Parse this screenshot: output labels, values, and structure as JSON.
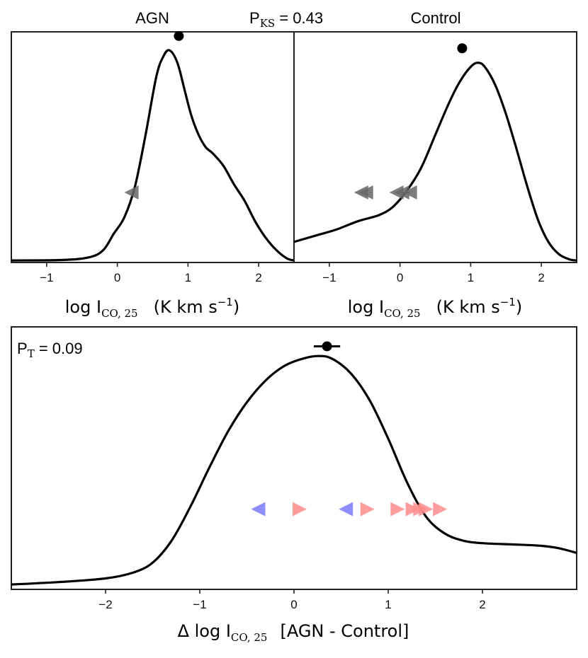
{
  "chart_data": [
    {
      "panel": "top-left",
      "type": "line",
      "title": "AGN",
      "xlabel": {
        "main": "log I",
        "sub": "CO, 25",
        "units_pre": "(K km s",
        "units_sup": "−1",
        "units_post": ")"
      },
      "xlim": [
        -1.5,
        2.5
      ],
      "ylim": [
        0,
        1.12
      ],
      "xticks": [
        -1,
        0,
        1,
        2
      ],
      "xtick_labels": [
        "−1",
        "0",
        "1",
        "2"
      ],
      "density": {
        "x": [
          -1.5,
          -0.8,
          -0.4,
          -0.2,
          -0.05,
          0.1,
          0.25,
          0.4,
          0.55,
          0.65,
          0.74,
          0.85,
          0.95,
          1.05,
          1.15,
          1.25,
          1.35,
          1.5,
          1.65,
          1.8,
          1.95,
          2.1,
          2.25,
          2.4,
          2.5
        ],
        "y": [
          0.01,
          0.012,
          0.025,
          0.06,
          0.14,
          0.22,
          0.37,
          0.62,
          0.9,
          1.0,
          1.03,
          0.97,
          0.84,
          0.71,
          0.62,
          0.56,
          0.53,
          0.47,
          0.38,
          0.3,
          0.2,
          0.12,
          0.06,
          0.02,
          0.01
        ]
      },
      "points": [
        {
          "x": 0.87,
          "y": 1.1,
          "marker": "circle",
          "color": "#000000"
        }
      ],
      "upper_limits": [
        {
          "x": 0.2,
          "y": 0.34,
          "marker": "left-triangle",
          "color": "#666666"
        }
      ]
    },
    {
      "panel": "top-right",
      "type": "line",
      "title": "Control",
      "xlabel": {
        "main": "log I",
        "sub": "CO, 25",
        "units_pre": "(K km s",
        "units_sup": "−1",
        "units_post": ")"
      },
      "xlim": [
        -1.5,
        2.5
      ],
      "ylim": [
        0,
        1.12
      ],
      "xticks": [
        -1,
        0,
        1,
        2
      ],
      "xtick_labels": [
        "−1",
        "0",
        "1",
        "2"
      ],
      "density": {
        "x": [
          -1.5,
          -1.2,
          -0.9,
          -0.6,
          -0.3,
          -0.1,
          0.1,
          0.3,
          0.5,
          0.7,
          0.85,
          1.0,
          1.1,
          1.2,
          1.35,
          1.5,
          1.65,
          1.8,
          1.95,
          2.1,
          2.25,
          2.4,
          2.5
        ],
        "y": [
          0.1,
          0.13,
          0.16,
          0.2,
          0.23,
          0.27,
          0.35,
          0.46,
          0.62,
          0.78,
          0.88,
          0.95,
          0.97,
          0.95,
          0.86,
          0.72,
          0.55,
          0.37,
          0.21,
          0.1,
          0.04,
          0.015,
          0.01
        ]
      },
      "points": [
        {
          "x": 0.88,
          "y": 1.04,
          "marker": "circle",
          "color": "#000000"
        }
      ],
      "upper_limits": [
        {
          "x": -0.55,
          "y": 0.34,
          "marker": "left-triangle",
          "color": "#666666"
        },
        {
          "x": -0.48,
          "y": 0.34,
          "marker": "left-triangle",
          "color": "#666666"
        },
        {
          "x": -0.05,
          "y": 0.34,
          "marker": "left-triangle",
          "color": "#666666"
        },
        {
          "x": 0.03,
          "y": 0.34,
          "marker": "left-triangle",
          "color": "#666666"
        },
        {
          "x": 0.14,
          "y": 0.34,
          "marker": "left-triangle",
          "color": "#666666"
        }
      ]
    },
    {
      "panel": "bottom",
      "type": "line",
      "xlabel": {
        "main": "Δ  log I",
        "sub": "CO, 25",
        "units_pre": "[AGN - Control]",
        "units_sup": "",
        "units_post": ""
      },
      "xlim": [
        -3.0,
        3.0
      ],
      "ylim": [
        0,
        1.08
      ],
      "xticks": [
        -2,
        -1,
        0,
        1,
        2
      ],
      "xtick_labels": [
        "−2",
        "−1",
        "0",
        "1",
        "2"
      ],
      "density": {
        "x": [
          -3.0,
          -2.5,
          -2.0,
          -1.7,
          -1.5,
          -1.3,
          -1.1,
          -0.9,
          -0.7,
          -0.5,
          -0.3,
          -0.1,
          0.1,
          0.25,
          0.4,
          0.6,
          0.8,
          1.0,
          1.2,
          1.4,
          1.6,
          1.8,
          2.0,
          2.3,
          2.6,
          2.8,
          3.0
        ],
        "y": [
          0.02,
          0.03,
          0.045,
          0.07,
          0.11,
          0.2,
          0.34,
          0.5,
          0.65,
          0.77,
          0.86,
          0.92,
          0.95,
          0.96,
          0.95,
          0.89,
          0.78,
          0.62,
          0.44,
          0.3,
          0.23,
          0.2,
          0.19,
          0.185,
          0.18,
          0.17,
          0.15
        ]
      },
      "points": [
        {
          "x": 0.35,
          "y": 1.0,
          "xerr": 0.14,
          "marker": "circle",
          "color": "#000000"
        }
      ],
      "upper_limits": [
        {
          "x": -0.38,
          "y": 0.33,
          "marker": "left-triangle",
          "color": "#7a7aff"
        },
        {
          "x": 0.06,
          "y": 0.33,
          "marker": "right-triangle",
          "color": "#ff8c8c"
        },
        {
          "x": 0.55,
          "y": 0.33,
          "marker": "left-triangle",
          "color": "#7a7aff"
        },
        {
          "x": 0.78,
          "y": 0.33,
          "marker": "right-triangle",
          "color": "#ff8c8c"
        },
        {
          "x": 1.1,
          "y": 0.33,
          "marker": "right-triangle",
          "color": "#ff8c8c"
        },
        {
          "x": 1.26,
          "y": 0.33,
          "marker": "right-triangle",
          "color": "#ff8c8c"
        },
        {
          "x": 1.34,
          "y": 0.33,
          "marker": "right-triangle",
          "color": "#ff8c8c"
        },
        {
          "x": 1.4,
          "y": 0.33,
          "marker": "right-triangle",
          "color": "#ff8c8c"
        },
        {
          "x": 1.55,
          "y": 0.33,
          "marker": "right-triangle",
          "color": "#ff8c8c"
        }
      ]
    }
  ],
  "annotations": {
    "pks": {
      "label": "P",
      "sub": "KS",
      "value": " = 0.43"
    },
    "pt": {
      "label": "P",
      "sub": "T",
      "value": " = 0.09"
    }
  }
}
